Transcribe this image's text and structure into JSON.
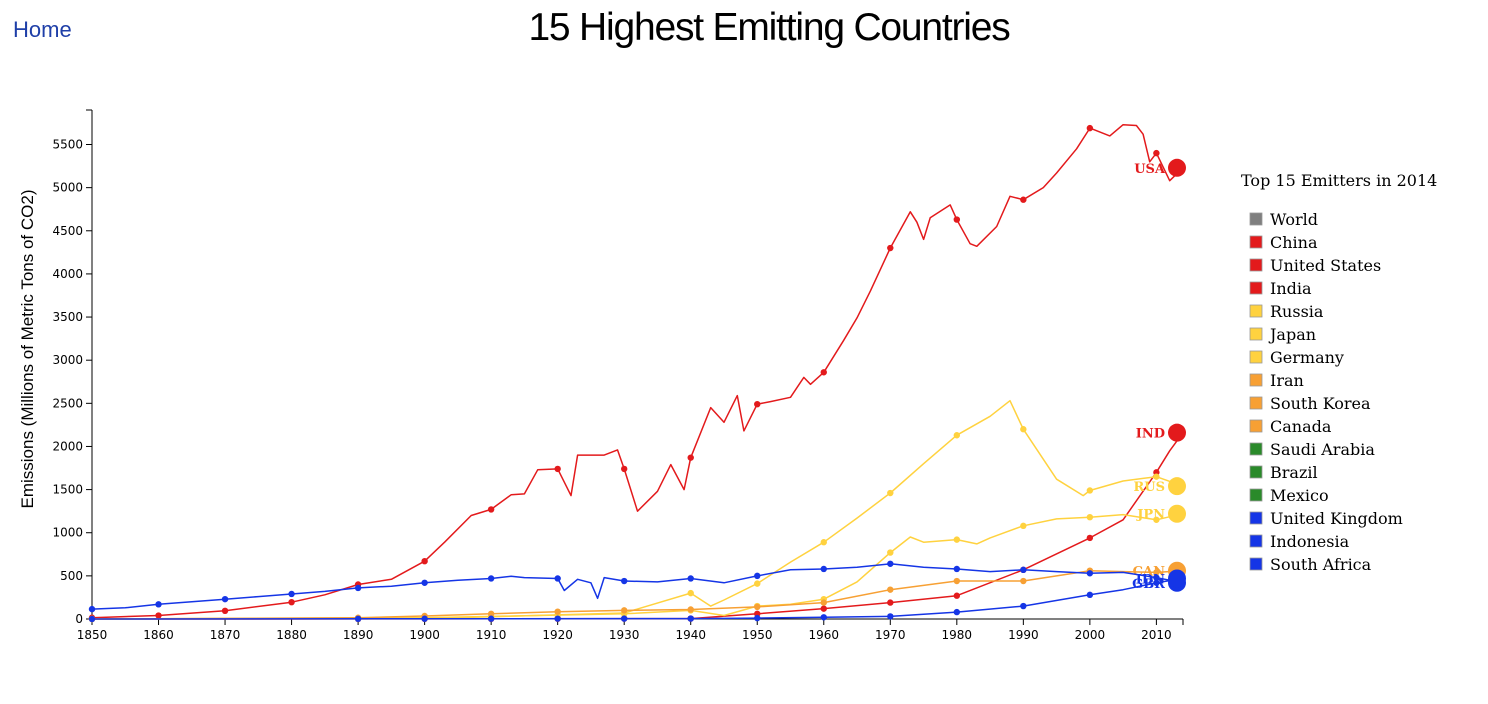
{
  "nav": {
    "home_label": "Home"
  },
  "page": {
    "title": "15 Highest Emitting Countries"
  },
  "chart_data": {
    "type": "line",
    "title": "15 Highest Emitting Countries",
    "xlabel": "",
    "ylabel": "Emissions (Millions of Metric Tons of CO2)",
    "xlim": [
      1850,
      2014
    ],
    "ylim": [
      0,
      5900
    ],
    "x_ticks": [
      1850,
      1860,
      1870,
      1880,
      1890,
      1900,
      1910,
      1920,
      1930,
      1940,
      1950,
      1960,
      1970,
      1980,
      1990,
      2000,
      2010
    ],
    "y_ticks": [
      0,
      500,
      1000,
      1500,
      2000,
      2500,
      3000,
      3500,
      4000,
      4500,
      5000,
      5500
    ],
    "legend_title": "Top 15 Emitters in 2014",
    "legend": [
      {
        "name": "World",
        "color": "#7f7f7f"
      },
      {
        "name": "China",
        "color": "#e31a1c"
      },
      {
        "name": "United States",
        "color": "#e31a1c"
      },
      {
        "name": "India",
        "color": "#e31a1c"
      },
      {
        "name": "Russia",
        "color": "#ffd23f"
      },
      {
        "name": "Japan",
        "color": "#ffd23f"
      },
      {
        "name": "Germany",
        "color": "#ffd23f"
      },
      {
        "name": "Iran",
        "color": "#f7a034"
      },
      {
        "name": "South Korea",
        "color": "#f7a034"
      },
      {
        "name": "Canada",
        "color": "#f7a034"
      },
      {
        "name": "Saudi Arabia",
        "color": "#2a8a2a"
      },
      {
        "name": "Brazil",
        "color": "#2a8a2a"
      },
      {
        "name": "Mexico",
        "color": "#2a8a2a"
      },
      {
        "name": "United Kingdom",
        "color": "#1535e6"
      },
      {
        "name": "Indonesia",
        "color": "#1535e6"
      },
      {
        "name": "South Africa",
        "color": "#1535e6"
      }
    ],
    "series": [
      {
        "name": "United States",
        "code": "USA",
        "color": "#e31a1c",
        "x": [
          1850,
          1860,
          1870,
          1880,
          1885,
          1890,
          1895,
          1900,
          1903,
          1907,
          1910,
          1913,
          1915,
          1917,
          1920,
          1922,
          1923,
          1927,
          1929,
          1930,
          1932,
          1935,
          1937,
          1939,
          1940,
          1943,
          1945,
          1947,
          1948,
          1950,
          1952,
          1955,
          1957,
          1958,
          1960,
          1963,
          1965,
          1967,
          1970,
          1973,
          1974,
          1975,
          1976,
          1979,
          1980,
          1982,
          1983,
          1986,
          1988,
          1990,
          1993,
          1995,
          1998,
          2000,
          2003,
          2005,
          2007,
          2008,
          2009,
          2010,
          2012,
          2014
        ],
        "y": [
          15,
          40,
          95,
          195,
          280,
          400,
          460,
          670,
          890,
          1200,
          1270,
          1440,
          1450,
          1730,
          1740,
          1430,
          1900,
          1900,
          1960,
          1740,
          1250,
          1480,
          1790,
          1500,
          1870,
          2450,
          2280,
          2590,
          2180,
          2490,
          2520,
          2570,
          2800,
          2720,
          2860,
          3230,
          3490,
          3800,
          4300,
          4720,
          4600,
          4400,
          4650,
          4800,
          4630,
          4350,
          4320,
          4550,
          4900,
          4860,
          5000,
          5170,
          5450,
          5690,
          5600,
          5730,
          5720,
          5620,
          5300,
          5400,
          5080,
          5230
        ],
        "markers_x": [
          1850,
          1860,
          1870,
          1880,
          1890,
          1900,
          1910,
          1920,
          1930,
          1940,
          1950,
          1960,
          1970,
          1980,
          1990,
          2000,
          2010
        ]
      },
      {
        "name": "India",
        "code": "IND",
        "color": "#e31a1c",
        "x": [
          1850,
          1900,
          1940,
          1950,
          1960,
          1970,
          1980,
          1990,
          2000,
          2005,
          2010,
          2012,
          2014
        ],
        "y": [
          0,
          1,
          5,
          60,
          120,
          190,
          270,
          570,
          940,
          1150,
          1700,
          1950,
          2160
        ],
        "markers_x": [
          1850,
          1890,
          1900,
          1910,
          1920,
          1930,
          1940,
          1950,
          1960,
          1970,
          1980,
          1990,
          2000,
          2010
        ]
      },
      {
        "name": "Russia",
        "code": "RUS",
        "color": "#ffd23f",
        "x": [
          1850,
          1900,
          1930,
          1940,
          1943,
          1945,
          1950,
          1955,
          1960,
          1965,
          1970,
          1975,
          1980,
          1985,
          1988,
          1990,
          1995,
          1999,
          2000,
          2005,
          2010,
          2014
        ],
        "y": [
          0,
          5,
          70,
          300,
          150,
          220,
          410,
          660,
          890,
          1170,
          1460,
          1800,
          2130,
          2350,
          2530,
          2200,
          1620,
          1430,
          1490,
          1600,
          1650,
          1540
        ],
        "markers_x": [
          1850,
          1890,
          1900,
          1910,
          1920,
          1930,
          1940,
          1950,
          1960,
          1970,
          1980,
          1990,
          2000,
          2010
        ]
      },
      {
        "name": "Japan",
        "code": "JPN",
        "color": "#ffd23f",
        "x": [
          1850,
          1900,
          1930,
          1940,
          1945,
          1950,
          1955,
          1960,
          1965,
          1970,
          1973,
          1975,
          1980,
          1983,
          1985,
          1990,
          1995,
          2000,
          2005,
          2010,
          2014
        ],
        "y": [
          0,
          15,
          60,
          100,
          40,
          150,
          170,
          230,
          430,
          770,
          950,
          890,
          920,
          870,
          940,
          1080,
          1160,
          1180,
          1210,
          1150,
          1220
        ],
        "markers_x": [
          1850,
          1890,
          1900,
          1910,
          1920,
          1930,
          1940,
          1950,
          1960,
          1970,
          1980,
          1990,
          2000,
          2010
        ]
      },
      {
        "name": "Canada",
        "code": "CAN",
        "color": "#f7a034",
        "x": [
          1850,
          1890,
          1900,
          1910,
          1920,
          1930,
          1940,
          1950,
          1960,
          1970,
          1980,
          1990,
          2000,
          2010,
          2014
        ],
        "y": [
          0,
          15,
          35,
          60,
          85,
          100,
          110,
          140,
          190,
          340,
          440,
          440,
          560,
          540,
          560
        ],
        "markers_x": [
          1850,
          1890,
          1900,
          1910,
          1920,
          1930,
          1940,
          1950,
          1960,
          1970,
          1980,
          1990,
          2000,
          2010
        ]
      },
      {
        "name": "United Kingdom",
        "code": "GBR",
        "color": "#1535e6",
        "x": [
          1850,
          1855,
          1860,
          1865,
          1870,
          1875,
          1880,
          1885,
          1890,
          1895,
          1900,
          1905,
          1910,
          1913,
          1915,
          1920,
          1921,
          1923,
          1925,
          1926,
          1927,
          1930,
          1935,
          1940,
          1945,
          1950,
          1955,
          1960,
          1965,
          1970,
          1975,
          1980,
          1985,
          1990,
          1995,
          2000,
          2005,
          2010,
          2014
        ],
        "y": [
          115,
          130,
          170,
          200,
          230,
          260,
          290,
          320,
          360,
          380,
          420,
          450,
          470,
          495,
          480,
          470,
          330,
          460,
          420,
          240,
          480,
          440,
          430,
          470,
          420,
          500,
          570,
          580,
          600,
          640,
          600,
          580,
          550,
          570,
          550,
          530,
          540,
          480,
          420
        ],
        "markers_x": [
          1850,
          1860,
          1870,
          1880,
          1890,
          1900,
          1910,
          1920,
          1930,
          1940,
          1950,
          1960,
          1970,
          1980,
          1990,
          2000,
          2010
        ]
      },
      {
        "name": "Indonesia",
        "code": "IDN",
        "color": "#1535e6",
        "x": [
          1850,
          1940,
          1950,
          1960,
          1970,
          1980,
          1990,
          2000,
          2005,
          2010,
          2014
        ],
        "y": [
          0,
          5,
          10,
          20,
          30,
          80,
          150,
          280,
          340,
          420,
          470
        ],
        "markers_x": [
          1850,
          1890,
          1900,
          1910,
          1920,
          1930,
          1940,
          1950,
          1960,
          1970,
          1980,
          1990,
          2000,
          2010
        ]
      }
    ]
  }
}
